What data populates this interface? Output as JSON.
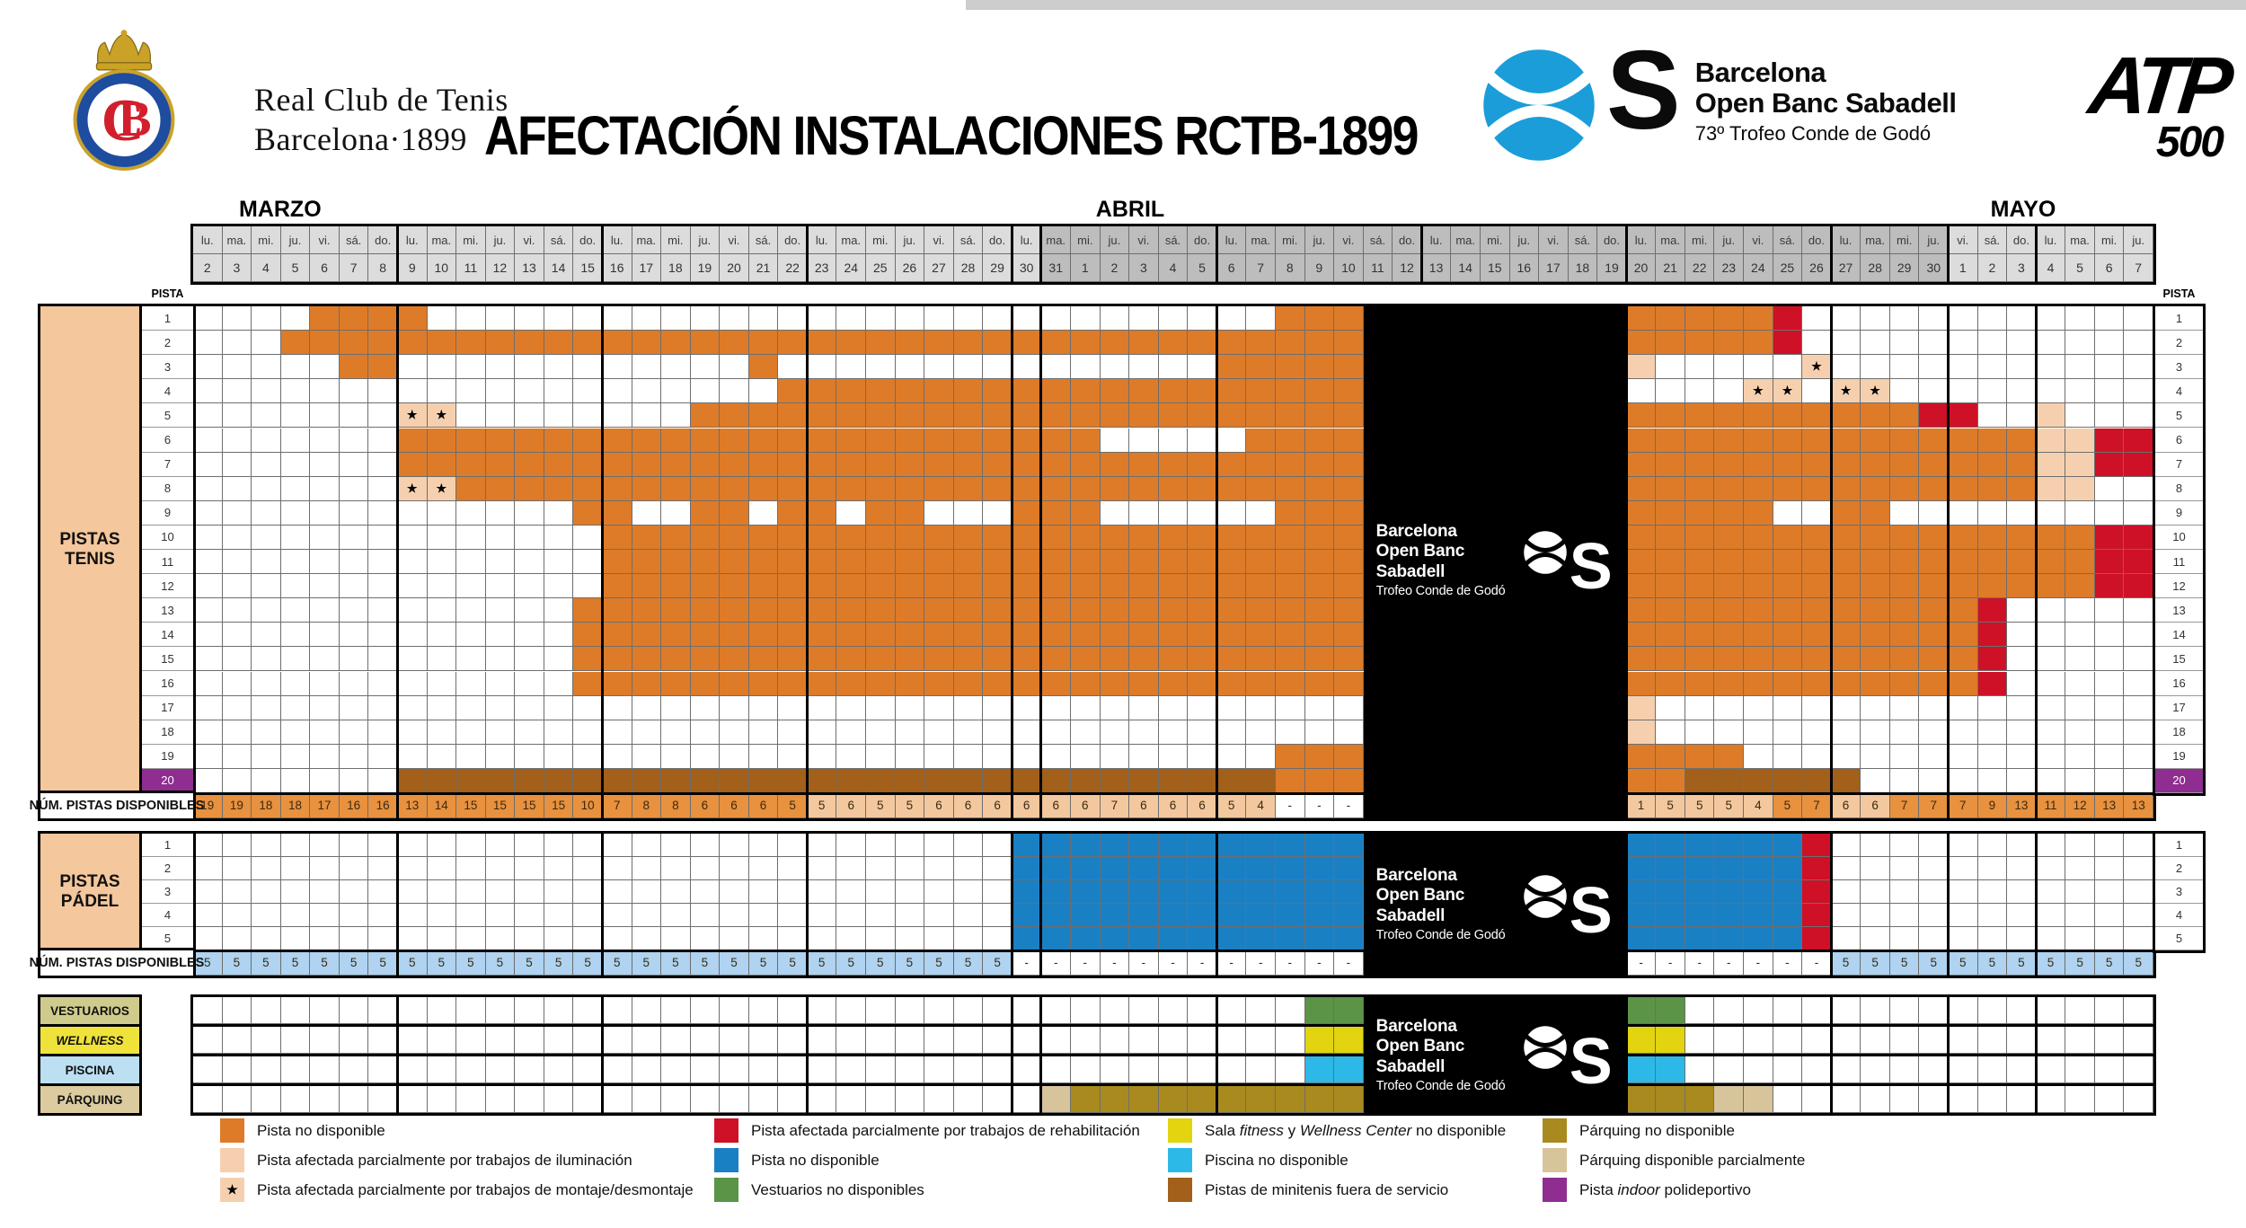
{
  "colors": {
    "orange": "#DE7B28",
    "peach": "#F6D0AE",
    "red": "#CE1126",
    "blue": "#1A80C4",
    "cyan": "#2CB9E8",
    "green": "#5B9447",
    "yellow": "#E2D40E",
    "gold": "#A98A1E",
    "tan": "#D8C49A",
    "brown": "#A2601A",
    "purple": "#8F2D90",
    "num_orange": "#E8913E",
    "num_light": "#F4C89E",
    "num_blue": "#AFD3F0",
    "header_light": "#DCDCDC",
    "header_dark": "#BDBDBD",
    "block_peach": "#F4C79C",
    "label_vest": "#CFCB8C",
    "label_well": "#EFE23B",
    "label_pisc": "#BCDFF2",
    "label_parq": "#DCCB9E",
    "ball_blue": "#1B9DD9"
  },
  "header": {
    "club": {
      "line1": "Real Club de Tenis",
      "line2": "Barcelona·1899"
    },
    "sponsor": {
      "s": "S",
      "line1": "Barcelona",
      "line2": "Open Banc Sabadell",
      "line3": "73º Trofeo Conde de Godó"
    },
    "atp": {
      "line1": "ATP",
      "line2": "500"
    }
  },
  "chart_data": {
    "type": "heatmap",
    "title": "AFECTACIÓN INSTALACIONES RCTB-1899",
    "months": [
      "MARZO",
      "ABRIL",
      "MAYO"
    ],
    "calendar": {
      "dow": [
        "lu.",
        "ma.",
        "mi.",
        "ju.",
        "vi.",
        "sá.",
        "do.",
        "lu.",
        "ma.",
        "mi.",
        "ju.",
        "vi.",
        "sá.",
        "do.",
        "lu.",
        "ma.",
        "mi.",
        "ju.",
        "vi.",
        "sá.",
        "do.",
        "lu.",
        "ma.",
        "mi.",
        "ju.",
        "vi.",
        "sá.",
        "do.",
        "lu.",
        "ma.",
        "mi.",
        "ju.",
        "vi.",
        "sá.",
        "do.",
        "lu.",
        "ma.",
        "mi.",
        "ju.",
        "vi.",
        "sá.",
        "do.",
        "lu.",
        "ma.",
        "mi.",
        "ju.",
        "vi.",
        "sá.",
        "do.",
        "lu.",
        "ma.",
        "mi.",
        "ju.",
        "vi.",
        "sá.",
        "do.",
        "lu.",
        "ma.",
        "mi.",
        "ju.",
        "vi.",
        "sá.",
        "do.",
        "lu.",
        "ma.",
        "mi.",
        "ju."
      ],
      "days": [
        2,
        3,
        4,
        5,
        6,
        7,
        8,
        9,
        10,
        11,
        12,
        13,
        14,
        15,
        16,
        17,
        18,
        19,
        20,
        21,
        22,
        23,
        24,
        25,
        26,
        27,
        28,
        29,
        30,
        31,
        1,
        2,
        3,
        4,
        5,
        6,
        7,
        8,
        9,
        10,
        11,
        12,
        13,
        14,
        15,
        16,
        17,
        18,
        19,
        20,
        21,
        22,
        23,
        24,
        25,
        26,
        27,
        28,
        29,
        30,
        1,
        2,
        3,
        4,
        5,
        6,
        7
      ],
      "shade": "29L,31D,7L",
      "week_breaks_after": [
        6,
        13,
        20,
        27,
        28,
        34,
        41,
        48,
        55,
        59,
        62
      ]
    },
    "tournament_box": {
      "first_col": 40,
      "last_col": 48,
      "line1": "Barcelona",
      "line2": "Open Banc Sabadell",
      "line3": "Trofeo Conde de Godó"
    },
    "state_key": {
      ".": "disponible",
      "O": "pista no disponible",
      "P": "afectada parcialmente trabajos de iluminación",
      "S": "afectada parcialmente montaje/desmontaje (estrella)",
      "R": "trabajos de rehabilitación / no disponible",
      "B": "pádel no disponible",
      "G": "vestuarios no disponibles",
      "Y": "wellness no disponible",
      "C": "piscina no disponible",
      "K": "párquing no disponible",
      "T": "párquing disponible parcialmente",
      "M": "minitenis fuera de servicio",
      "X": "torneo (caja negra)"
    },
    "tennis": {
      "label_lines": [
        "PISTAS",
        "TENIS"
      ],
      "pista_label": "PISTA",
      "num_label": "NÚM. PISTAS DISPONIBLES",
      "rows": [
        {
          "num": 1,
          "cells": "4.,4O,29.,3O,9X,5O,1R,12."
        },
        {
          "num": 2,
          "cells": "3.,37O,9X,5O,1R,12."
        },
        {
          "num": 3,
          "cells": "5.,2O,12.,1O,15.,5O,9X,1P,5.,1S,11."
        },
        {
          "num": 4,
          "cells": "20.,20O,9X,4.,2S,1.,2S,9."
        },
        {
          "num": 5,
          "cells": "7.,2S,8.,23O,9X,10O,2R,2.,1P,3."
        },
        {
          "num": 6,
          "cells": "7.,24O,5.,4O,9X,14O,2P,2R"
        },
        {
          "num": 7,
          "cells": "7.,33O,9X,14O,2P,2R"
        },
        {
          "num": 8,
          "cells": "7.,2S,31O,9X,14O,2P,2."
        },
        {
          "num": 9,
          "cells": "13.,2O,2.,2O,1.,2O,1.,2O,3.,3O,6.,3O,9X,5O,2.,2O,9."
        },
        {
          "num": 10,
          "cells": "14.,26O,9X,16O,2R"
        },
        {
          "num": 11,
          "cells": "14.,26O,9X,16O,2R"
        },
        {
          "num": 12,
          "cells": "14.,26O,9X,16O,2R"
        },
        {
          "num": 13,
          "cells": "13.,27O,9X,12O,1R,5."
        },
        {
          "num": 14,
          "cells": "13.,27O,9X,12O,1R,5."
        },
        {
          "num": 15,
          "cells": "13.,27O,9X,12O,1R,5."
        },
        {
          "num": 16,
          "cells": "13.,27O,9X,12O,1R,5."
        },
        {
          "num": 17,
          "cells": "40.,9X,1P,17."
        },
        {
          "num": 18,
          "cells": "40.,9X,1P,17."
        },
        {
          "num": 19,
          "cells": "37.,3O,9X,4O,14."
        },
        {
          "num": 20,
          "cells": "7.,30M,3O,9X,2O,6M,10."
        }
      ],
      "num_values": [
        "19",
        "19",
        "18",
        "18",
        "17",
        "16",
        "16",
        "13",
        "14",
        "15",
        "15",
        "15",
        "15",
        "10",
        "7",
        "8",
        "8",
        "6",
        "6",
        "6",
        "5",
        "5",
        "6",
        "5",
        "5",
        "6",
        "6",
        "6",
        "6",
        "6",
        "6",
        "7",
        "6",
        "6",
        "6",
        "5",
        "4",
        "-",
        "-",
        "-",
        "",
        "",
        "",
        "",
        "",
        "",
        "",
        "",
        "",
        "1",
        "5",
        "5",
        "5",
        "4",
        "5",
        "7",
        "6",
        "6",
        "7",
        "7",
        "7",
        "9",
        "13",
        "11",
        "12",
        "13",
        "13"
      ],
      "num_tones": "21o,16l,3w,9x,5l,2o,2l,9o"
    },
    "padel": {
      "label_lines": [
        "PISTAS",
        "PÁDEL"
      ],
      "num_label": "NÚM. PISTAS DISPONIBLES",
      "rows": [
        {
          "num": 1,
          "cells": "28.,12B,9X,6B,1R,11."
        },
        {
          "num": 2,
          "cells": "28.,12B,9X,6B,1R,11."
        },
        {
          "num": 3,
          "cells": "28.,12B,9X,6B,1R,11."
        },
        {
          "num": 4,
          "cells": "28.,12B,9X,6B,1R,11."
        },
        {
          "num": 5,
          "cells": "28.,12B,9X,6B,1R,11."
        }
      ],
      "num_values_runs": "28:5;12:-;9:;7:-;11:5",
      "num_tones": "28b,12w,9x,7w,11b"
    },
    "facilities": {
      "rows": [
        {
          "label": "VESTUARIOS",
          "bg": "label_vest",
          "italic": false,
          "cells": "38.,2G,9X,2G,16."
        },
        {
          "label": "WELLNESS",
          "bg": "label_well",
          "italic": true,
          "cells": "38.,2Y,9X,2Y,16."
        },
        {
          "label": "PISCINA",
          "bg": "label_pisc",
          "italic": false,
          "cells": "38.,2C,9X,2C,16."
        },
        {
          "label": "PÁRQUING",
          "bg": "label_parq",
          "italic": false,
          "cells": "29.,1T,10K,9X,3K,2T,13."
        }
      ]
    }
  },
  "legend": {
    "columns": [
      [
        {
          "color": "orange",
          "runs": [
            {
              "t": "Pista no disponible"
            }
          ]
        },
        {
          "color": "peach",
          "runs": [
            {
              "t": "Pista afectada parcialmente por trabajos de iluminación"
            }
          ]
        },
        {
          "color": "peach",
          "star": true,
          "runs": [
            {
              "t": "Pista afectada parcialmente por trabajos de montaje/desmontaje"
            }
          ]
        }
      ],
      [
        {
          "color": "red",
          "runs": [
            {
              "t": "Pista afectada parcialmente por trabajos de rehabilitación"
            }
          ]
        },
        {
          "color": "blue",
          "runs": [
            {
              "t": "Pista no disponible"
            }
          ]
        },
        {
          "color": "green",
          "runs": [
            {
              "t": "Vestuarios no disponibles"
            }
          ]
        }
      ],
      [
        {
          "color": "yellow",
          "runs": [
            {
              "t": "Sala "
            },
            {
              "t": "fitness",
              "i": true
            },
            {
              "t": " y "
            },
            {
              "t": "Wellness Center",
              "i": true
            },
            {
              "t": " no disponible"
            }
          ]
        },
        {
          "color": "cyan",
          "runs": [
            {
              "t": "Piscina no disponible"
            }
          ]
        },
        {
          "color": "brown",
          "runs": [
            {
              "t": "Pistas de minitenis fuera de servicio"
            }
          ]
        }
      ],
      [
        {
          "color": "gold",
          "runs": [
            {
              "t": "Párquing no disponible"
            }
          ]
        },
        {
          "color": "tan",
          "runs": [
            {
              "t": "Párquing disponible parcialmente"
            }
          ]
        },
        {
          "color": "purple",
          "runs": [
            {
              "t": "Pista "
            },
            {
              "t": "indoor",
              "i": true
            },
            {
              "t": " polideportivo"
            }
          ]
        }
      ]
    ]
  }
}
